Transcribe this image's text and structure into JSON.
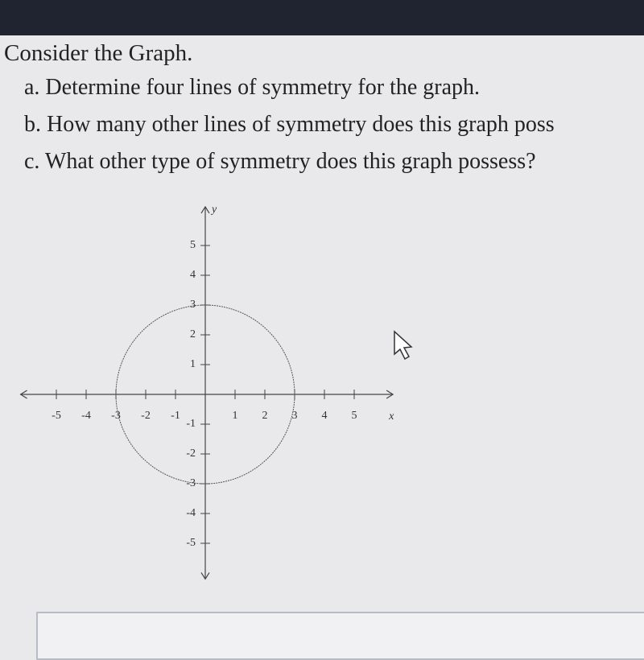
{
  "question": {
    "title": "Consider the Graph.",
    "items": [
      "a. Determine four lines of symmetry for the graph.",
      "b. How many other lines of symmetry does this graph poss",
      "c. What other type of symmetry does this graph possess?"
    ]
  },
  "graph": {
    "x_label": "x",
    "y_label": "y",
    "xlim": [
      -6.2,
      6.3
    ],
    "ylim": [
      -6.2,
      6.3
    ],
    "xticks": [
      -5,
      -4,
      -3,
      -2,
      -1,
      1,
      2,
      3,
      4,
      5
    ],
    "yticks": [
      -5,
      -4,
      -3,
      -2,
      -1,
      1,
      2,
      3,
      4,
      5
    ],
    "circle": {
      "cx": 0,
      "cy": 0,
      "r": 3
    }
  }
}
